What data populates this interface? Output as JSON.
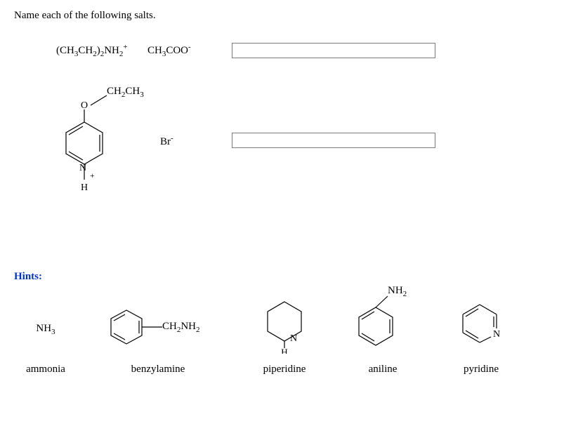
{
  "title": "Name each of the following salts.",
  "salts": {
    "row1": {
      "cation_html": "(CH<sub>3</sub>CH<sub>2</sub>)<sub>2</sub>NH<sub>2</sub><sup>+</sup>",
      "anion_html": "CH<sub>3</sub>COO<sup>-</sup>",
      "answer": ""
    },
    "row2": {
      "substituent_html": "CH<sub>2</sub>CH<sub>3</sub>",
      "anion_html": "Br<sup>-</sup>",
      "answer": ""
    }
  },
  "hints": {
    "label": "Hints:",
    "items": [
      {
        "name": "ammonia",
        "formula_html": "NH<sub>3</sub>"
      },
      {
        "name": "benzylamine",
        "sub_html": "CH<sub>2</sub>NH<sub>2</sub>"
      },
      {
        "name": "piperidine"
      },
      {
        "name": "aniline",
        "sub_html": "NH<sub>2</sub>"
      },
      {
        "name": "pyridine"
      }
    ]
  },
  "colors": {
    "text": "#000000",
    "bg": "#ffffff",
    "hint_label": "#0033cc",
    "input_border": "#7a7a7a"
  }
}
